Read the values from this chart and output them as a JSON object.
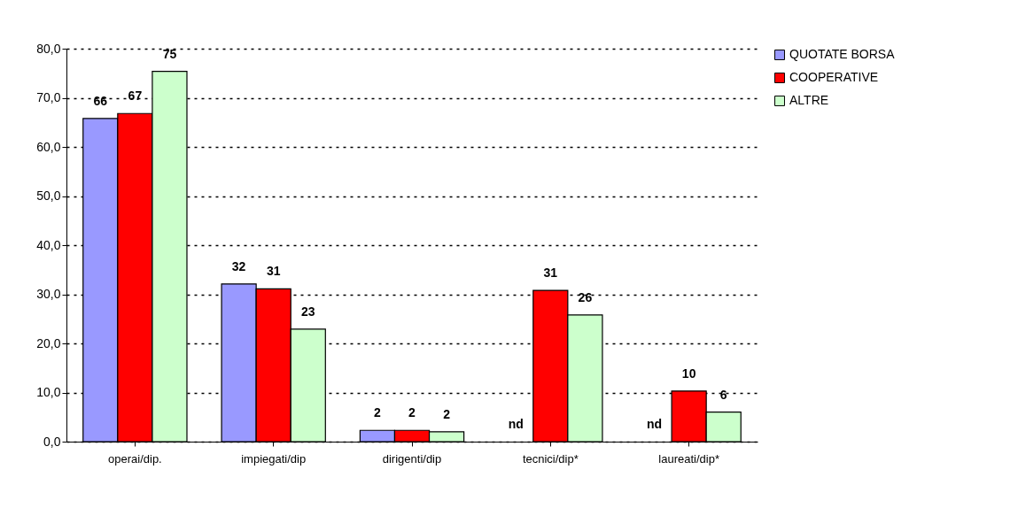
{
  "chart_data": {
    "type": "bar",
    "categories": [
      "operai/dip.",
      "impiegati/dip",
      "dirigenti/dip",
      "tecnici/dip*",
      "laureati/dip*"
    ],
    "series": [
      {
        "name": "QUOTATE BORSA",
        "color": "#9999ff",
        "values": [
          65.8,
          32.1,
          2.3,
          null,
          null
        ],
        "value_labels": [
          "66",
          "32",
          "2",
          "nd",
          "nd"
        ]
      },
      {
        "name": "COOPERATIVE",
        "color": "#ff0000",
        "values": [
          66.8,
          31.1,
          2.3,
          30.8,
          10.3
        ],
        "value_labels": [
          "67",
          "31",
          "2",
          "31",
          "10"
        ]
      },
      {
        "name": "ALTRE",
        "color": "#ccffcc",
        "values": [
          75.4,
          22.9,
          2.0,
          25.8,
          6.0
        ],
        "value_labels": [
          "75",
          "23",
          "2",
          "26",
          "6"
        ]
      }
    ],
    "ylim": [
      0,
      80
    ],
    "yticks": [
      {
        "value": 0,
        "label": "0,0"
      },
      {
        "value": 10,
        "label": "10,0"
      },
      {
        "value": 20,
        "label": "20,0"
      },
      {
        "value": 30,
        "label": "30,0"
      },
      {
        "value": 40,
        "label": "40,0"
      },
      {
        "value": 50,
        "label": "50,0"
      },
      {
        "value": 60,
        "label": "60,0"
      },
      {
        "value": 70,
        "label": "70,0"
      },
      {
        "value": 80,
        "label": "80,0"
      }
    ],
    "grid": "y",
    "legend": "right"
  }
}
